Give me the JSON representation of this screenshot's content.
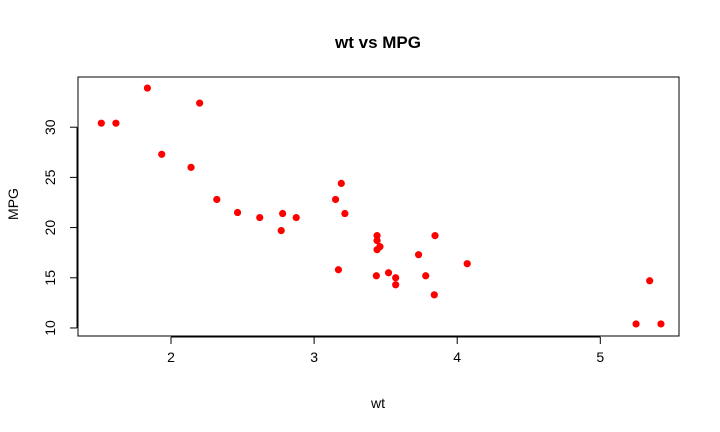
{
  "chart_data": {
    "type": "scatter",
    "title": "wt vs MPG",
    "xlabel": "wt",
    "ylabel": "MPG",
    "xlim": [
      1.35,
      5.55
    ],
    "ylim": [
      9.2,
      35.0
    ],
    "xticks": [
      2,
      3,
      4,
      5
    ],
    "yticks": [
      10,
      15,
      20,
      25,
      30
    ],
    "point_color": "#ff0000",
    "grid": false,
    "series": [
      {
        "x": [
          2.62,
          2.875,
          2.32,
          3.215,
          3.44,
          3.46,
          3.57,
          3.19,
          3.15,
          3.44,
          3.44,
          4.07,
          3.73,
          3.78,
          5.25,
          5.424,
          5.345,
          2.2,
          1.615,
          1.835,
          2.465,
          3.52,
          3.435,
          3.84,
          3.845,
          1.935,
          2.14,
          1.513,
          3.17,
          2.77,
          3.57,
          2.78
        ],
        "y": [
          21.0,
          21.0,
          22.8,
          21.4,
          18.7,
          18.1,
          14.3,
          24.4,
          22.8,
          19.2,
          17.8,
          16.4,
          17.3,
          15.2,
          10.4,
          10.4,
          14.7,
          32.4,
          30.4,
          33.9,
          21.5,
          15.5,
          15.2,
          13.3,
          19.2,
          27.3,
          26.0,
          30.4,
          15.8,
          19.7,
          15.0,
          21.4
        ]
      }
    ]
  }
}
